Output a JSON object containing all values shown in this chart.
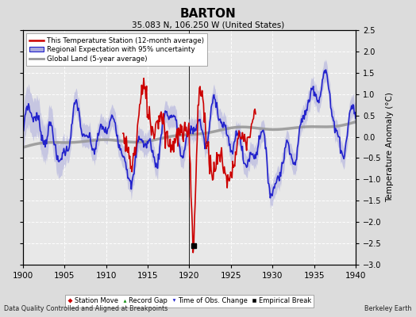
{
  "title": "BARTON",
  "subtitle": "35.083 N, 106.250 W (United States)",
  "ylabel": "Temperature Anomaly (°C)",
  "xlabel_note": "Data Quality Controlled and Aligned at Breakpoints",
  "credit": "Berkeley Earth",
  "xlim": [
    1900,
    1940
  ],
  "ylim": [
    -3,
    2.5
  ],
  "yticks": [
    -3,
    -2.5,
    -2,
    -1.5,
    -1,
    -0.5,
    0,
    0.5,
    1,
    1.5,
    2,
    2.5
  ],
  "xticks": [
    1900,
    1905,
    1910,
    1915,
    1920,
    1925,
    1930,
    1935,
    1940
  ],
  "background_color": "#dcdcdc",
  "plot_background": "#e8e8e8",
  "empirical_break_x": 1920.5,
  "empirical_break_y": -2.55,
  "vertical_line_x": 1920,
  "regional_color": "#2222cc",
  "regional_fill_color": "#aaaadd",
  "station_color": "#cc0000",
  "global_color": "#999999",
  "global_lw": 2.5,
  "regional_lw": 1.2,
  "station_lw": 1.2,
  "station_start": 1912.0,
  "station_end": 1928.0
}
